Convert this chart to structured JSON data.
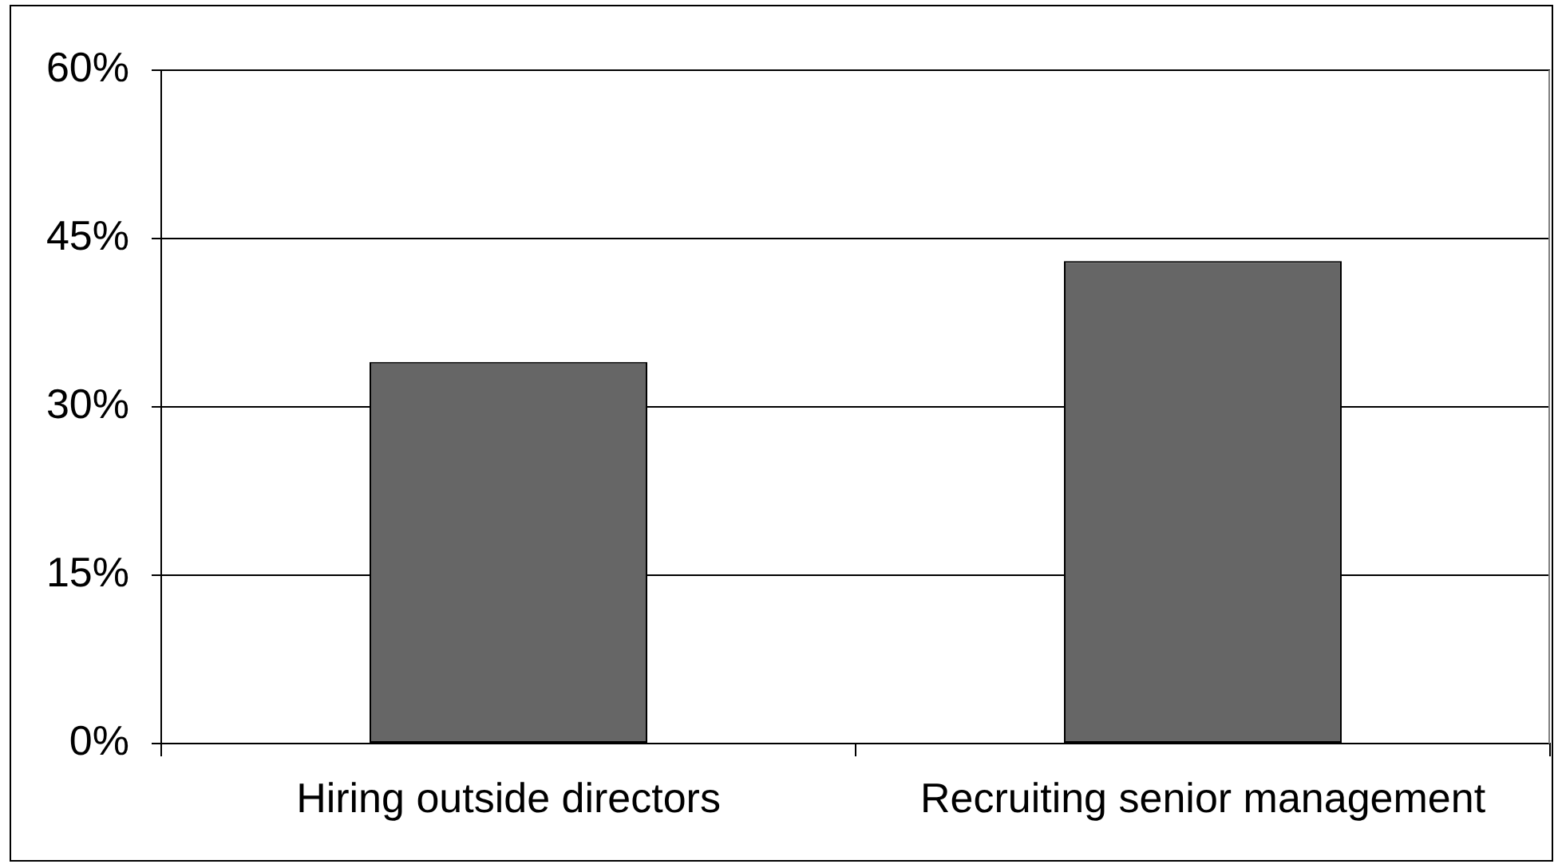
{
  "chart_data": {
    "type": "bar",
    "categories": [
      "Hiring outside directors",
      "Recruiting senior management"
    ],
    "values": [
      34,
      43
    ],
    "color": "#666666",
    "ylim": [
      0,
      60
    ],
    "yticks": [
      {
        "value": 0,
        "label": "0%"
      },
      {
        "value": 15,
        "label": "15%"
      },
      {
        "value": 30,
        "label": "30%"
      },
      {
        "value": 45,
        "label": "45%"
      },
      {
        "value": 60,
        "label": "60%"
      }
    ],
    "grid": "y"
  }
}
